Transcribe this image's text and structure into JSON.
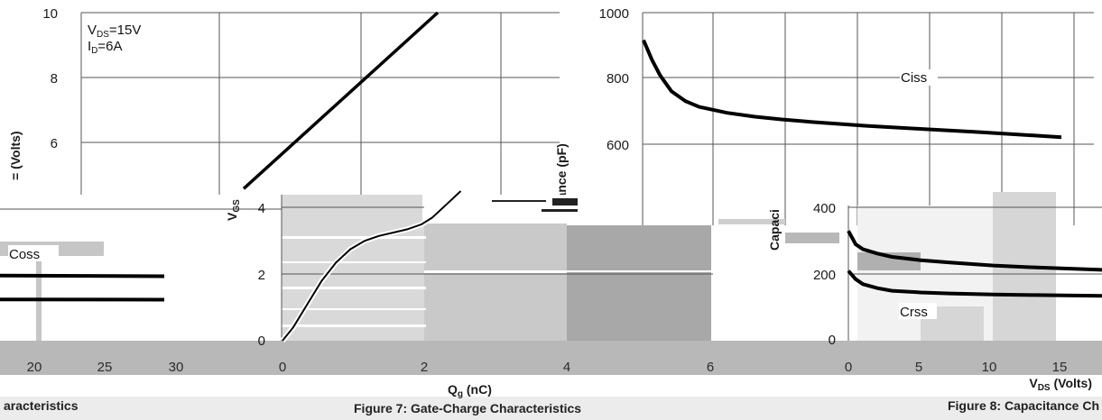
{
  "colors": {
    "grid": "#555555",
    "curve": "#000000",
    "band": "#b8b8b8",
    "block_light": "#c9c9c9",
    "block_dark": "#a8a8a8"
  },
  "chart_data": [
    {
      "type": "line",
      "title": "",
      "ylabel_fragment": "= (Volts)",
      "conditions": [
        "VDS=15V",
        "ID=6A"
      ],
      "condition_labels": {
        "vds_main": "V",
        "vds_sub": "DS",
        "vds_val": "=15V",
        "id_main": "I",
        "id_sub": "D",
        "id_val": "=6A"
      },
      "y_ticks": [
        "10",
        "8",
        "6"
      ],
      "ylim": [
        4,
        10
      ],
      "series": [
        {
          "x": [
            0.0,
            0.8
          ],
          "y": [
            4.2,
            10.0
          ]
        }
      ]
    },
    {
      "type": "line",
      "title": "",
      "ylabel_fragment": "itance (pF)",
      "y_ticks": [
        "1000",
        "800",
        "600"
      ],
      "ylim": [
        500,
        1000
      ],
      "annotation": "Ciss",
      "series": [
        {
          "name": "Ciss",
          "x": [
            0,
            0.3,
            0.6,
            1,
            1.5,
            2,
            3,
            4,
            5,
            6,
            8,
            10,
            12,
            15
          ],
          "y": [
            930,
            880,
            840,
            800,
            775,
            760,
            745,
            735,
            728,
            722,
            712,
            704,
            696,
            683
          ]
        }
      ]
    },
    {
      "type": "line",
      "title": "",
      "annotation": "Coss",
      "x_ticks": [
        "20",
        "25",
        "30"
      ],
      "xlim": [
        17,
        31
      ],
      "series": [
        {
          "name": "Coss",
          "x": [
            17,
            30
          ],
          "y": [
            205,
            203
          ]
        },
        {
          "name": "Crss",
          "x": [
            17,
            30
          ],
          "y": [
            130,
            129
          ]
        }
      ]
    },
    {
      "type": "line",
      "title": "",
      "xlabel_main": "Q",
      "xlabel_sub": "g",
      "xlabel_unit": " (nC)",
      "ylabel_main": "V",
      "ylabel_sub": "GS",
      "x_ticks": [
        "0",
        "2",
        "4",
        "6"
      ],
      "y_ticks": [
        "4",
        "2",
        "0"
      ],
      "xlim": [
        0,
        6
      ],
      "ylim": [
        0,
        4.5
      ],
      "series": [
        {
          "x": [
            0,
            0.15,
            0.35,
            0.55,
            0.75,
            0.95,
            1.15,
            1.35,
            1.55,
            1.75,
            1.95,
            2.1,
            2.3,
            2.5
          ],
          "y": [
            0,
            0.4,
            1.1,
            1.8,
            2.35,
            2.75,
            3.0,
            3.15,
            3.25,
            3.35,
            3.5,
            3.7,
            4.1,
            4.5
          ]
        }
      ]
    },
    {
      "type": "line",
      "title": "",
      "ylabel_fragment": "Capaci",
      "xlabel_main": "V",
      "xlabel_sub": "DS",
      "xlabel_unit": " (Volts)",
      "x_ticks": [
        "0",
        "5",
        "10",
        "15"
      ],
      "y_ticks": [
        "400",
        "200",
        "0"
      ],
      "xlim": [
        0,
        17.5
      ],
      "ylim": [
        0,
        420
      ],
      "annotation": "Crss",
      "series": [
        {
          "name": "Coss",
          "x": [
            0,
            0.5,
            1,
            2,
            3,
            5,
            7,
            10,
            13,
            17.5
          ],
          "y": [
            330,
            290,
            275,
            262,
            252,
            242,
            235,
            226,
            220,
            213
          ]
        },
        {
          "name": "Crss",
          "x": [
            0,
            0.5,
            1,
            2,
            3,
            5,
            7,
            10,
            13,
            17.5
          ],
          "y": [
            210,
            185,
            170,
            158,
            150,
            145,
            142,
            139,
            137,
            135
          ]
        }
      ]
    }
  ],
  "captions": {
    "left": "aracteristics",
    "center": "Figure 7: Gate-Charge Characteristics",
    "right": "Figure 8: Capacitance Ch"
  }
}
